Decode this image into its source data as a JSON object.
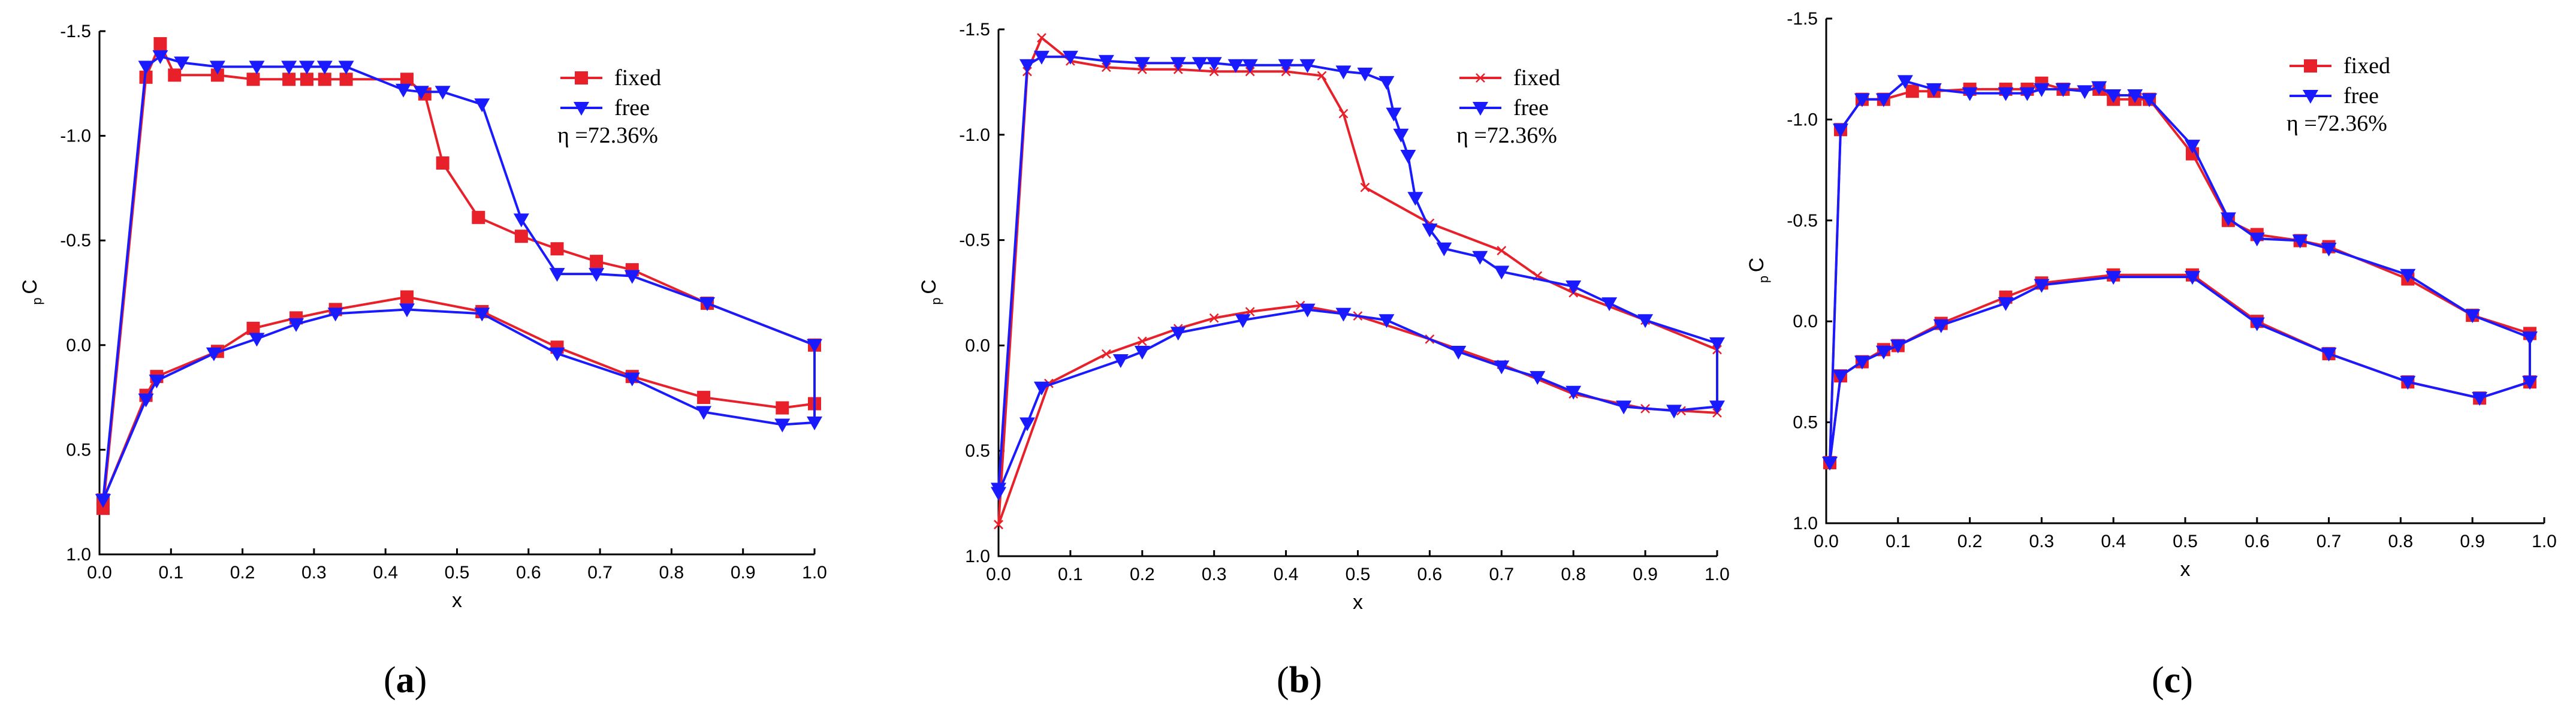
{
  "colors": {
    "fixed": "#e8202a",
    "free": "#1a1aff",
    "axis": "#000000"
  },
  "chart_data": [
    {
      "type": "line",
      "panel": "a",
      "caption_open": "(",
      "caption_letter": "a",
      "caption_close": ")",
      "xlabel": "x",
      "ylabel_main": "C",
      "ylabel_sub": "p",
      "xlim": [
        0,
        1
      ],
      "ylim": [
        1.0,
        -1.5
      ],
      "x_ticks": [
        "0.0",
        "0.1",
        "0.2",
        "0.3",
        "0.4",
        "0.5",
        "0.6",
        "0.7",
        "0.8",
        "0.9",
        "1.0"
      ],
      "y_ticks": [
        "-1.5",
        "-1.0",
        "-0.5",
        "0.0",
        "0.5",
        "1.0"
      ],
      "legend": {
        "fixed": "fixed",
        "free": "free",
        "eta": "η =72.36%"
      },
      "series": [
        {
          "name": "fixed",
          "marker": "square",
          "points": [
            [
              0.005,
              0.78
            ],
            [
              0.065,
              -1.28
            ],
            [
              0.085,
              -1.44
            ],
            [
              0.105,
              -1.29
            ],
            [
              0.165,
              -1.29
            ],
            [
              0.215,
              -1.27
            ],
            [
              0.265,
              -1.27
            ],
            [
              0.29,
              -1.27
            ],
            [
              0.315,
              -1.27
            ],
            [
              0.345,
              -1.27
            ],
            [
              0.43,
              -1.27
            ],
            [
              0.455,
              -1.2
            ],
            [
              0.48,
              -0.87
            ],
            [
              0.53,
              -0.61
            ],
            [
              0.59,
              -0.52
            ],
            [
              0.64,
              -0.46
            ],
            [
              0.695,
              -0.4
            ],
            [
              0.745,
              -0.36
            ],
            [
              0.85,
              -0.2
            ],
            [
              1.0,
              0.0
            ],
            [
              1.0,
              0.28
            ],
            [
              0.955,
              0.3
            ],
            [
              0.845,
              0.25
            ],
            [
              0.745,
              0.15
            ],
            [
              0.64,
              0.01
            ],
            [
              0.535,
              -0.16
            ],
            [
              0.43,
              -0.23
            ],
            [
              0.33,
              -0.17
            ],
            [
              0.275,
              -0.13
            ],
            [
              0.215,
              -0.08
            ],
            [
              0.165,
              0.03
            ],
            [
              0.08,
              0.15
            ],
            [
              0.065,
              0.24
            ],
            [
              0.005,
              0.74
            ]
          ]
        },
        {
          "name": "free",
          "marker": "triangle",
          "points": [
            [
              0.005,
              0.74
            ],
            [
              0.065,
              -1.33
            ],
            [
              0.085,
              -1.38
            ],
            [
              0.115,
              -1.35
            ],
            [
              0.165,
              -1.33
            ],
            [
              0.22,
              -1.33
            ],
            [
              0.265,
              -1.33
            ],
            [
              0.29,
              -1.33
            ],
            [
              0.315,
              -1.33
            ],
            [
              0.345,
              -1.33
            ],
            [
              0.425,
              -1.22
            ],
            [
              0.45,
              -1.21
            ],
            [
              0.48,
              -1.21
            ],
            [
              0.535,
              -1.15
            ],
            [
              0.59,
              -0.6
            ],
            [
              0.64,
              -0.34
            ],
            [
              0.695,
              -0.34
            ],
            [
              0.745,
              -0.33
            ],
            [
              0.85,
              -0.2
            ],
            [
              1.0,
              0.0
            ],
            [
              1.0,
              0.37
            ],
            [
              0.955,
              0.38
            ],
            [
              0.845,
              0.32
            ],
            [
              0.745,
              0.16
            ],
            [
              0.64,
              0.04
            ],
            [
              0.535,
              -0.15
            ],
            [
              0.43,
              -0.17
            ],
            [
              0.33,
              -0.15
            ],
            [
              0.275,
              -0.1
            ],
            [
              0.22,
              -0.03
            ],
            [
              0.16,
              0.04
            ],
            [
              0.08,
              0.17
            ],
            [
              0.065,
              0.26
            ],
            [
              0.005,
              0.74
            ]
          ]
        }
      ]
    },
    {
      "type": "line",
      "panel": "b",
      "caption_open": "(",
      "caption_letter": "b",
      "caption_close": ")",
      "xlabel": "x",
      "ylabel_main": "C",
      "ylabel_sub": "p",
      "xlim": [
        0,
        1
      ],
      "ylim": [
        1.0,
        -1.5
      ],
      "x_ticks": [
        "0.0",
        "0.1",
        "0.2",
        "0.3",
        "0.4",
        "0.5",
        "0.6",
        "0.7",
        "0.8",
        "0.9",
        "1.0"
      ],
      "y_ticks": [
        "-1.5",
        "-1.0",
        "-0.5",
        "0.0",
        "0.5",
        "1.0"
      ],
      "legend": {
        "fixed": "fixed",
        "free": "free",
        "eta": "η =72.36%"
      },
      "series": [
        {
          "name": "fixed",
          "marker": "cross",
          "points": [
            [
              0.0,
              0.85
            ],
            [
              0.04,
              -1.3
            ],
            [
              0.06,
              -1.46
            ],
            [
              0.1,
              -1.35
            ],
            [
              0.15,
              -1.32
            ],
            [
              0.2,
              -1.31
            ],
            [
              0.25,
              -1.31
            ],
            [
              0.3,
              -1.3
            ],
            [
              0.35,
              -1.3
            ],
            [
              0.4,
              -1.3
            ],
            [
              0.45,
              -1.28
            ],
            [
              0.48,
              -1.1
            ],
            [
              0.51,
              -0.75
            ],
            [
              0.6,
              -0.58
            ],
            [
              0.7,
              -0.45
            ],
            [
              0.75,
              -0.33
            ],
            [
              0.8,
              -0.25
            ],
            [
              0.9,
              -0.12
            ],
            [
              1.0,
              0.02
            ],
            [
              1.0,
              0.32
            ],
            [
              0.95,
              0.31
            ],
            [
              0.9,
              0.3
            ],
            [
              0.8,
              0.23
            ],
            [
              0.7,
              0.09
            ],
            [
              0.6,
              -0.03
            ],
            [
              0.5,
              -0.14
            ],
            [
              0.42,
              -0.19
            ],
            [
              0.35,
              -0.16
            ],
            [
              0.3,
              -0.13
            ],
            [
              0.25,
              -0.08
            ],
            [
              0.2,
              -0.02
            ],
            [
              0.15,
              0.04
            ],
            [
              0.07,
              0.18
            ],
            [
              0.0,
              0.85
            ]
          ]
        },
        {
          "name": "free",
          "marker": "triangle",
          "points": [
            [
              0.0,
              0.68
            ],
            [
              0.04,
              -1.33
            ],
            [
              0.06,
              -1.37
            ],
            [
              0.1,
              -1.37
            ],
            [
              0.15,
              -1.35
            ],
            [
              0.2,
              -1.34
            ],
            [
              0.25,
              -1.34
            ],
            [
              0.28,
              -1.34
            ],
            [
              0.3,
              -1.34
            ],
            [
              0.33,
              -1.33
            ],
            [
              0.35,
              -1.33
            ],
            [
              0.4,
              -1.33
            ],
            [
              0.43,
              -1.33
            ],
            [
              0.48,
              -1.3
            ],
            [
              0.51,
              -1.29
            ],
            [
              0.54,
              -1.25
            ],
            [
              0.55,
              -1.1
            ],
            [
              0.56,
              -1.0
            ],
            [
              0.57,
              -0.9
            ],
            [
              0.58,
              -0.7
            ],
            [
              0.6,
              -0.55
            ],
            [
              0.62,
              -0.46
            ],
            [
              0.67,
              -0.42
            ],
            [
              0.7,
              -0.35
            ],
            [
              0.8,
              -0.28
            ],
            [
              0.85,
              -0.2
            ],
            [
              0.9,
              -0.12
            ],
            [
              1.0,
              -0.01
            ],
            [
              1.0,
              0.29
            ],
            [
              0.94,
              0.31
            ],
            [
              0.87,
              0.29
            ],
            [
              0.8,
              0.22
            ],
            [
              0.75,
              0.15
            ],
            [
              0.7,
              0.1
            ],
            [
              0.64,
              0.03
            ],
            [
              0.54,
              -0.12
            ],
            [
              0.48,
              -0.15
            ],
            [
              0.43,
              -0.17
            ],
            [
              0.34,
              -0.12
            ],
            [
              0.25,
              -0.06
            ],
            [
              0.2,
              0.03
            ],
            [
              0.17,
              0.07
            ],
            [
              0.06,
              0.2
            ],
            [
              0.04,
              0.37
            ],
            [
              0.0,
              0.7
            ]
          ]
        }
      ]
    },
    {
      "type": "line",
      "panel": "c",
      "caption_open": "(",
      "caption_letter": "c",
      "caption_close": ")",
      "xlabel": "x",
      "ylabel_main": "C",
      "ylabel_sub": "p",
      "xlim": [
        0,
        1
      ],
      "ylim": [
        1.0,
        -1.5
      ],
      "x_ticks": [
        "0.0",
        "0.1",
        "0.2",
        "0.3",
        "0.4",
        "0.5",
        "0.6",
        "0.7",
        "0.8",
        "0.9",
        "1.0"
      ],
      "y_ticks": [
        "-1.5",
        "-1.0",
        "-0.5",
        "0.0",
        "0.5",
        "1.0"
      ],
      "legend": {
        "fixed": "fixed",
        "free": "free",
        "eta": "η =72.36%"
      },
      "series": [
        {
          "name": "fixed",
          "marker": "square",
          "points": [
            [
              0.005,
              0.7
            ],
            [
              0.02,
              -0.95
            ],
            [
              0.05,
              -1.1
            ],
            [
              0.08,
              -1.1
            ],
            [
              0.12,
              -1.14
            ],
            [
              0.15,
              -1.14
            ],
            [
              0.2,
              -1.15
            ],
            [
              0.25,
              -1.15
            ],
            [
              0.28,
              -1.15
            ],
            [
              0.3,
              -1.18
            ],
            [
              0.33,
              -1.15
            ],
            [
              0.38,
              -1.15
            ],
            [
              0.4,
              -1.1
            ],
            [
              0.43,
              -1.1
            ],
            [
              0.45,
              -1.1
            ],
            [
              0.51,
              -0.83
            ],
            [
              0.56,
              -0.5
            ],
            [
              0.6,
              -0.43
            ],
            [
              0.66,
              -0.4
            ],
            [
              0.7,
              -0.37
            ],
            [
              0.81,
              -0.21
            ],
            [
              0.9,
              -0.03
            ],
            [
              0.98,
              0.06
            ],
            [
              0.98,
              0.3
            ],
            [
              0.91,
              0.38
            ],
            [
              0.81,
              0.3
            ],
            [
              0.7,
              0.16
            ],
            [
              0.6,
              0.0
            ],
            [
              0.51,
              -0.23
            ],
            [
              0.4,
              -0.23
            ],
            [
              0.3,
              -0.19
            ],
            [
              0.25,
              -0.12
            ],
            [
              0.16,
              0.01
            ],
            [
              0.1,
              0.12
            ],
            [
              0.08,
              0.14
            ],
            [
              0.05,
              0.2
            ],
            [
              0.02,
              0.27
            ],
            [
              0.005,
              0.7
            ]
          ]
        },
        {
          "name": "free",
          "marker": "triangle",
          "points": [
            [
              0.005,
              0.7
            ],
            [
              0.02,
              -0.95
            ],
            [
              0.05,
              -1.1
            ],
            [
              0.08,
              -1.1
            ],
            [
              0.11,
              -1.19
            ],
            [
              0.15,
              -1.15
            ],
            [
              0.2,
              -1.13
            ],
            [
              0.25,
              -1.13
            ],
            [
              0.28,
              -1.13
            ],
            [
              0.3,
              -1.15
            ],
            [
              0.33,
              -1.15
            ],
            [
              0.36,
              -1.14
            ],
            [
              0.38,
              -1.16
            ],
            [
              0.4,
              -1.12
            ],
            [
              0.43,
              -1.12
            ],
            [
              0.45,
              -1.1
            ],
            [
              0.51,
              -0.87
            ],
            [
              0.56,
              -0.51
            ],
            [
              0.6,
              -0.41
            ],
            [
              0.66,
              -0.4
            ],
            [
              0.7,
              -0.36
            ],
            [
              0.81,
              -0.23
            ],
            [
              0.9,
              -0.03
            ],
            [
              0.98,
              0.08
            ],
            [
              0.98,
              0.3
            ],
            [
              0.91,
              0.38
            ],
            [
              0.81,
              0.3
            ],
            [
              0.7,
              0.16
            ],
            [
              0.6,
              0.01
            ],
            [
              0.51,
              -0.22
            ],
            [
              0.4,
              -0.22
            ],
            [
              0.3,
              -0.18
            ],
            [
              0.25,
              -0.09
            ],
            [
              0.16,
              0.02
            ],
            [
              0.1,
              0.12
            ],
            [
              0.08,
              0.15
            ],
            [
              0.05,
              0.2
            ],
            [
              0.02,
              0.27
            ],
            [
              0.005,
              0.7
            ]
          ]
        }
      ]
    }
  ]
}
